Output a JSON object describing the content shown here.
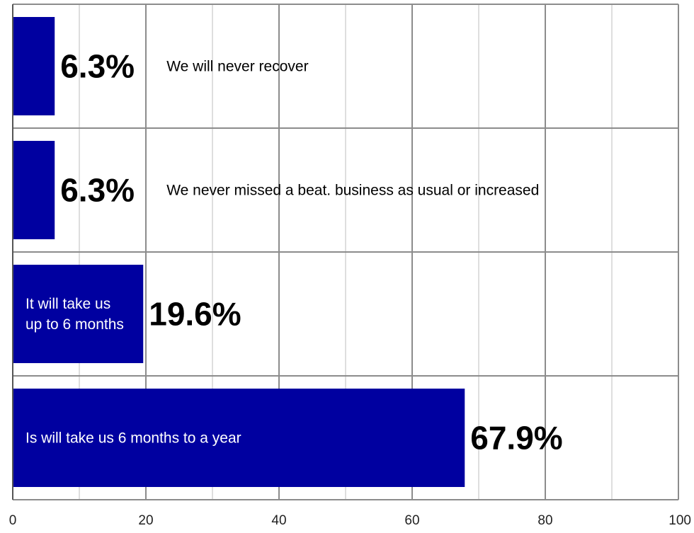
{
  "chart_data": {
    "type": "bar",
    "orientation": "horizontal",
    "title": "",
    "xlabel": "",
    "ylabel": "",
    "xlim": [
      0,
      100
    ],
    "x_ticks": [
      "0",
      "20",
      "40",
      "60",
      "80",
      "100"
    ],
    "grid": true,
    "categories": [
      "We will never recover",
      "We never missed a beat. business as usual or increased",
      "It will take us up to 6 months",
      "Is will take us 6 months to a year"
    ],
    "values": [
      6.3,
      6.3,
      19.6,
      67.9
    ],
    "value_labels": [
      "6.3%",
      "6.3%",
      "19.6%",
      "67.9%"
    ],
    "category_label_lines": [
      [
        "We will never recover"
      ],
      [
        "We never missed a beat. business as usual or increased"
      ],
      [
        "It will take us",
        "up to 6 months"
      ],
      [
        "Is will take us 6 months to a year"
      ]
    ],
    "category_label_placement": [
      "outside",
      "outside",
      "inside",
      "inside"
    ],
    "colors": {
      "bar": "#0000a0",
      "grid_major": "#8c8c8c",
      "grid_minor": "#d4d4d4",
      "inside_text": "#ffffff",
      "outside_text": "#000000"
    }
  }
}
